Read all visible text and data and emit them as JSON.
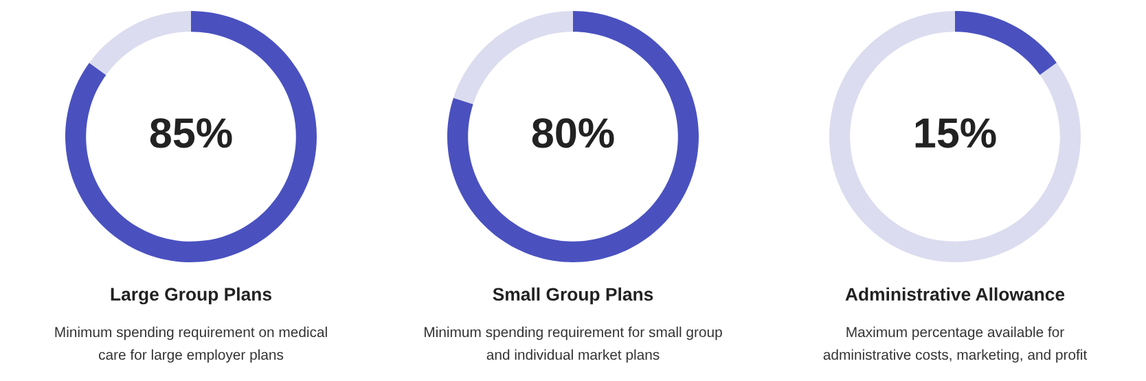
{
  "chart_data": [
    {
      "type": "donut",
      "title": "Large Group Plans",
      "subtitle": "Minimum spending requirement on medical\ncare for large employer plans",
      "categories": [
        null,
        null
      ],
      "values": [
        85,
        15
      ],
      "colors": [
        "#4a51bf",
        "#dcdcf0"
      ],
      "value_labels": [
        "85%",
        null
      ]
    },
    {
      "type": "donut",
      "title": "Small Group Plans",
      "subtitle": "Minimum spending requirement for small group\nand individual market plans",
      "categories": [
        null,
        null
      ],
      "values": [
        80,
        20
      ],
      "colors": [
        "#4a51bf",
        "#dcdcf0"
      ],
      "value_labels": [
        "80%",
        null
      ]
    },
    {
      "type": "donut",
      "title": "Administrative Allowance",
      "subtitle": "Maximum percentage available for\nadministrative costs, marketing, and profit",
      "categories": [
        null,
        null
      ],
      "values": [
        15,
        85
      ],
      "colors": [
        "#4a51bf",
        "#dcdcf0"
      ],
      "value_labels": [
        "15%",
        null
      ]
    }
  ]
}
